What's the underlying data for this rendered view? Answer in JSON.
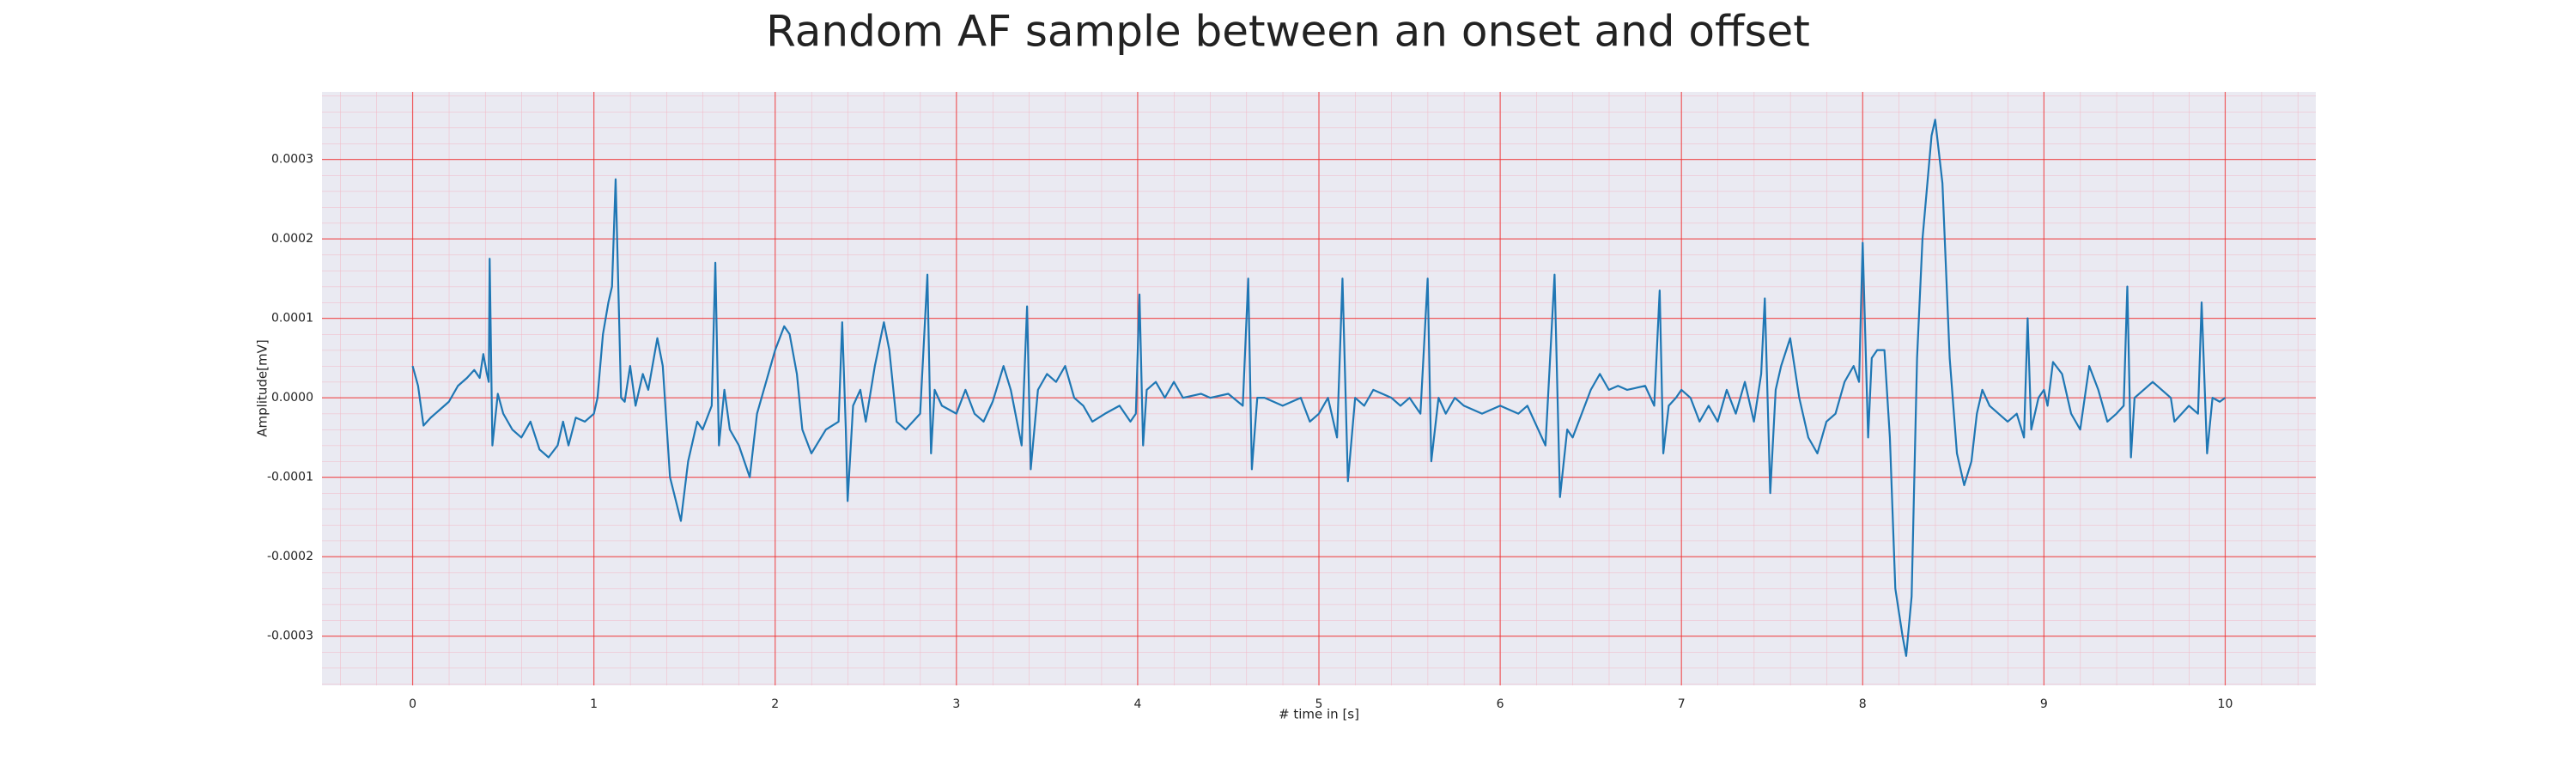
{
  "chart_data": {
    "type": "line",
    "title": "Random AF sample between an onset and offset",
    "x_label": "# time in [s]",
    "y_label": "Amplitude[mV]",
    "color": "#1f77b4",
    "grid": true,
    "xlim": [
      -0.5,
      10.5
    ],
    "ylim": [
      -0.000362,
      0.000385
    ],
    "xticks": [
      0,
      1,
      2,
      3,
      4,
      5,
      6,
      7,
      8,
      9,
      10
    ],
    "yticks": [
      -0.0003,
      -0.0002,
      -0.0001,
      {
        "value": 0,
        "label": "0.0000"
      },
      0.0001,
      0.0002,
      0.0003
    ],
    "x": [
      0,
      0.03,
      0.06,
      0.1,
      0.15,
      0.2,
      0.25,
      0.3,
      0.34,
      0.37,
      0.39,
      0.41,
      0.42,
      0.425,
      0.44,
      0.47,
      0.5,
      0.55,
      0.6,
      0.65,
      0.7,
      0.75,
      0.8,
      0.83,
      0.86,
      0.9,
      0.95,
      1.0,
      1.02,
      1.05,
      1.08,
      1.1,
      1.12,
      1.15,
      1.17,
      1.2,
      1.23,
      1.27,
      1.3,
      1.35,
      1.38,
      1.42,
      1.48,
      1.52,
      1.57,
      1.6,
      1.65,
      1.67,
      1.69,
      1.72,
      1.75,
      1.8,
      1.86,
      1.9,
      1.95,
      2.0,
      2.05,
      2.08,
      2.12,
      2.15,
      2.2,
      2.28,
      2.35,
      2.37,
      2.39,
      2.4,
      2.43,
      2.47,
      2.5,
      2.55,
      2.6,
      2.63,
      2.67,
      2.72,
      2.8,
      2.84,
      2.86,
      2.88,
      2.92,
      3.0,
      3.05,
      3.1,
      3.15,
      3.2,
      3.26,
      3.3,
      3.36,
      3.39,
      3.41,
      3.45,
      3.5,
      3.55,
      3.6,
      3.65,
      3.7,
      3.75,
      3.82,
      3.9,
      3.96,
      3.99,
      4.01,
      4.03,
      4.05,
      4.1,
      4.15,
      4.2,
      4.25,
      4.35,
      4.4,
      4.5,
      4.58,
      4.61,
      4.63,
      4.66,
      4.7,
      4.8,
      4.9,
      4.95,
      5.0,
      5.05,
      5.1,
      5.13,
      5.16,
      5.2,
      5.25,
      5.3,
      5.4,
      5.45,
      5.5,
      5.56,
      5.6,
      5.62,
      5.66,
      5.7,
      5.75,
      5.8,
      5.9,
      6.0,
      6.1,
      6.15,
      6.25,
      6.3,
      6.33,
      6.37,
      6.4,
      6.45,
      6.5,
      6.55,
      6.6,
      6.65,
      6.7,
      6.8,
      6.85,
      6.88,
      6.9,
      6.93,
      6.97,
      7.0,
      7.05,
      7.1,
      7.15,
      7.2,
      7.25,
      7.3,
      7.35,
      7.4,
      7.44,
      7.46,
      7.49,
      7.52,
      7.55,
      7.6,
      7.65,
      7.7,
      7.75,
      7.8,
      7.85,
      7.9,
      7.95,
      7.98,
      8.0,
      8.03,
      8.05,
      8.08,
      8.12,
      8.15,
      8.18,
      8.22,
      8.24,
      8.27,
      8.3,
      8.33,
      8.38,
      8.4,
      8.44,
      8.48,
      8.52,
      8.56,
      8.6,
      8.63,
      8.66,
      8.7,
      8.75,
      8.8,
      8.85,
      8.89,
      8.91,
      8.93,
      8.97,
      9.0,
      9.02,
      9.05,
      9.1,
      9.15,
      9.2,
      9.25,
      9.3,
      9.35,
      9.4,
      9.44,
      9.46,
      9.48,
      9.5,
      9.55,
      9.6,
      9.65,
      9.7,
      9.72,
      9.8,
      9.85,
      9.87,
      9.9,
      9.93,
      9.97,
      10.0
    ],
    "values": [
      4e-05,
      1.5e-05,
      -3.5e-05,
      -2.5e-05,
      -1.5e-05,
      -5e-06,
      1.5e-05,
      2.5e-05,
      3.5e-05,
      2.5e-05,
      5.5e-05,
      3e-05,
      2e-05,
      0.000175,
      -6e-05,
      5e-06,
      -2e-05,
      -4e-05,
      -5e-05,
      -3e-05,
      -6.5e-05,
      -7.5e-05,
      -6e-05,
      -3e-05,
      -6e-05,
      -2.5e-05,
      -3e-05,
      -2e-05,
      0,
      8e-05,
      0.00012,
      0.00014,
      0.000275,
      0,
      -5e-06,
      4e-05,
      -1e-05,
      3e-05,
      1e-05,
      7.5e-05,
      4e-05,
      -0.0001,
      -0.000155,
      -8e-05,
      -3e-05,
      -4e-05,
      -1e-05,
      0.00017,
      -6e-05,
      1e-05,
      -4e-05,
      -6e-05,
      -0.0001,
      -2e-05,
      2e-05,
      6e-05,
      9e-05,
      8e-05,
      3e-05,
      -4e-05,
      -7e-05,
      -4e-05,
      -3e-05,
      9.5e-05,
      -4e-05,
      -0.00013,
      -1e-05,
      1e-05,
      -3e-05,
      4e-05,
      9.5e-05,
      6e-05,
      -3e-05,
      -4e-05,
      -2e-05,
      0.000155,
      -7e-05,
      1e-05,
      -1e-05,
      -2e-05,
      1e-05,
      -2e-05,
      -3e-05,
      -5e-06,
      4e-05,
      1e-05,
      -6e-05,
      0.000115,
      -9e-05,
      1e-05,
      3e-05,
      2e-05,
      4e-05,
      0,
      -1e-05,
      -3e-05,
      -2e-05,
      -1e-05,
      -3e-05,
      -2e-05,
      0.00013,
      -6e-05,
      1e-05,
      2e-05,
      0,
      2e-05,
      0,
      5e-06,
      0,
      5e-06,
      -1e-05,
      0.00015,
      -9e-05,
      0,
      0,
      -1e-05,
      0,
      -3e-05,
      -2e-05,
      0,
      -5e-05,
      0.00015,
      -0.000105,
      0,
      -1e-05,
      1e-05,
      0,
      -1e-05,
      0,
      -2e-05,
      0.00015,
      -8e-05,
      0,
      -2e-05,
      0,
      -1e-05,
      -2e-05,
      -1e-05,
      -2e-05,
      -1e-05,
      -6e-05,
      0.000155,
      -0.000125,
      -4e-05,
      -5e-05,
      -2e-05,
      1e-05,
      3e-05,
      1e-05,
      1.5e-05,
      1e-05,
      1.5e-05,
      -1e-05,
      0.000135,
      -7e-05,
      -1e-05,
      0,
      1e-05,
      0,
      -3e-05,
      -1e-05,
      -3e-05,
      1e-05,
      -2e-05,
      2e-05,
      -3e-05,
      3e-05,
      0.000125,
      -0.00012,
      1e-05,
      4e-05,
      7.5e-05,
      0,
      -5e-05,
      -7e-05,
      -3e-05,
      -2e-05,
      2e-05,
      4e-05,
      2e-05,
      0.000195,
      -5e-05,
      5e-05,
      6e-05,
      6e-05,
      -5e-05,
      -0.00024,
      -0.0003,
      -0.000325,
      -0.00025,
      5e-05,
      0.0002,
      0.00033,
      0.00035,
      0.00027,
      5e-05,
      -7e-05,
      -0.00011,
      -8e-05,
      -2e-05,
      1e-05,
      -1e-05,
      -2e-05,
      -3e-05,
      -2e-05,
      -5e-05,
      0.0001,
      -4e-05,
      0,
      1e-05,
      -1e-05,
      4.5e-05,
      3e-05,
      -2e-05,
      -4e-05,
      4e-05,
      1e-05,
      -3e-05,
      -2e-05,
      -1e-05,
      0.00014,
      -7.5e-05,
      0,
      1e-05,
      2e-05,
      1e-05,
      0,
      -3e-05,
      -1e-05,
      -2e-05,
      0.00012,
      -7e-05,
      0,
      -5e-06,
      0
    ]
  }
}
